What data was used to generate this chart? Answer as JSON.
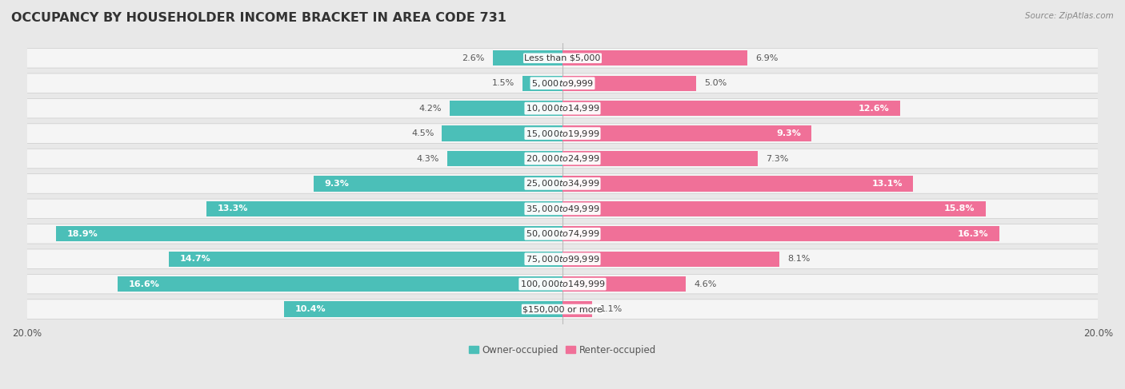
{
  "title": "OCCUPANCY BY HOUSEHOLDER INCOME BRACKET IN AREA CODE 731",
  "source": "Source: ZipAtlas.com",
  "categories": [
    "Less than $5,000",
    "$5,000 to $9,999",
    "$10,000 to $14,999",
    "$15,000 to $19,999",
    "$20,000 to $24,999",
    "$25,000 to $34,999",
    "$35,000 to $49,999",
    "$50,000 to $74,999",
    "$75,000 to $99,999",
    "$100,000 to $149,999",
    "$150,000 or more"
  ],
  "owner_values": [
    2.6,
    1.5,
    4.2,
    4.5,
    4.3,
    9.3,
    13.3,
    18.9,
    14.7,
    16.6,
    10.4
  ],
  "renter_values": [
    6.9,
    5.0,
    12.6,
    9.3,
    7.3,
    13.1,
    15.8,
    16.3,
    8.1,
    4.6,
    1.1
  ],
  "owner_color": "#4BBFB8",
  "renter_color": "#F07098",
  "owner_color_light": "#7DD4CF",
  "renter_color_light": "#F5A0BC",
  "background_color": "#e8e8e8",
  "bar_background": "#f5f5f5",
  "xlim": 20.0,
  "legend_owner": "Owner-occupied",
  "legend_renter": "Renter-occupied",
  "title_fontsize": 11.5,
  "label_fontsize": 8.0,
  "axis_label_fontsize": 8.5,
  "owner_label_threshold": 9.0,
  "renter_label_threshold": 9.0
}
